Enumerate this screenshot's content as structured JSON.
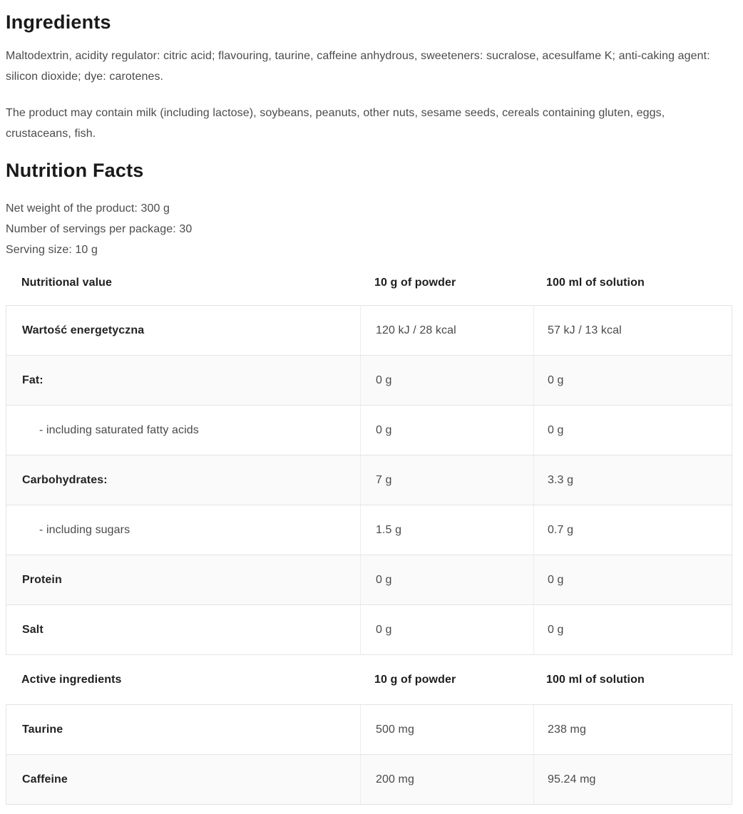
{
  "ingredients": {
    "title": "Ingredients",
    "paragraphs": [
      "Maltodextrin, acidity regulator: citric acid; flavouring, taurine, caffeine anhydrous, sweeteners: sucralose, acesulfame K; anti-caking agent: silicon dioxide; dye: carotenes.",
      "The product may contain milk (including lactose), soybeans, peanuts, other nuts, sesame seeds, cereals containing gluten, eggs, crustaceans, fish."
    ]
  },
  "nutrition": {
    "title": "Nutrition Facts",
    "info_lines": [
      "Net weight of the product: 300 g",
      "Number of servings per package: 30",
      "Serving size: 10 g"
    ],
    "table1": {
      "headers": [
        "Nutritional value",
        "10 g of powder",
        "100 ml of solution"
      ],
      "rows": [
        {
          "label": "Wartość energetyczna",
          "powder": "120 kJ / 28 kcal",
          "solution": "57 kJ / 13 kcal"
        },
        {
          "label": "Fat:",
          "powder": "0 g",
          "solution": "0 g"
        },
        {
          "label": "- including saturated fatty acids",
          "powder": "0 g",
          "solution": "0 g"
        },
        {
          "label": "Carbohydrates:",
          "powder": "7 g",
          "solution": "3.3 g"
        },
        {
          "label": "- including sugars",
          "powder": "1.5 g",
          "solution": "0.7 g"
        },
        {
          "label": "Protein",
          "powder": "0 g",
          "solution": "0 g"
        },
        {
          "label": "Salt",
          "powder": "0 g",
          "solution": "0 g"
        }
      ]
    },
    "table2": {
      "headers": [
        "Active ingredients",
        "10 g of powder",
        "100 ml of solution"
      ],
      "rows": [
        {
          "label": "Taurine",
          "powder": "500 mg",
          "solution": "238 mg"
        },
        {
          "label": "Caffeine",
          "powder": "200 mg",
          "solution": "95.24 mg"
        }
      ]
    }
  },
  "colors": {
    "heading_text": "#1a1a1a",
    "body_text": "#4b4b4b",
    "table_label_text": "#232323",
    "row_alt_background": "#fafafa",
    "row_border": "#e4e4e4",
    "column_separator": "#ececec"
  }
}
